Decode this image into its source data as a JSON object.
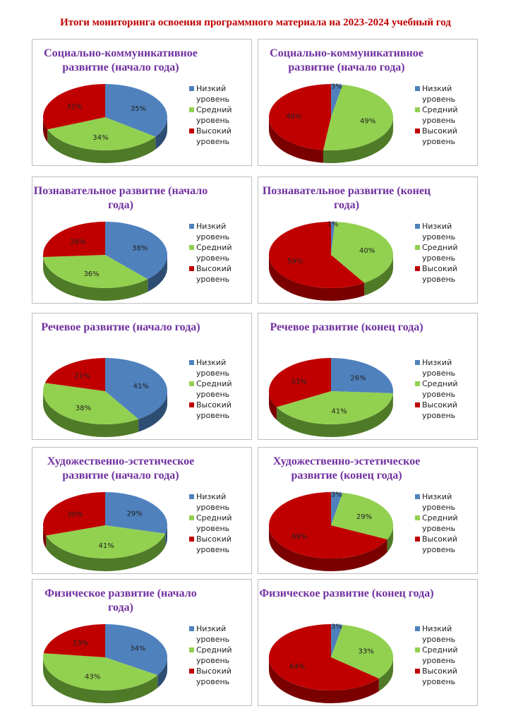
{
  "title": "Итоги мониторинга освоения программного материала на 2023-2024 учебный год",
  "legend": [
    "Низкий уровень",
    "Средний уровень",
    "Высокий уровень"
  ],
  "colors": [
    "#4f81bd",
    "#92d050",
    "#c00000"
  ],
  "chart_data": [
    {
      "type": "pie",
      "title": "Социально-коммуникативное развитие (начало года)",
      "categories": [
        "Низкий уровень",
        "Средний уровень",
        "Высокий уровень"
      ],
      "values": [
        35,
        34,
        31
      ],
      "labels": [
        "35%",
        "34%",
        "31%"
      ]
    },
    {
      "type": "pie",
      "title": "Социально-коммуникативное развитие (начало года)",
      "categories": [
        "Низкий уровень",
        "Средний уровень",
        "Высокий уровень"
      ],
      "values": [
        3,
        49,
        48
      ],
      "labels": [
        "3%",
        "49%",
        "48%"
      ]
    },
    {
      "type": "pie",
      "title": "Познавательное  развитие (начало года)",
      "categories": [
        "Низкий уровень",
        "Средний уровень",
        "Высокий уровень"
      ],
      "values": [
        38,
        36,
        26
      ],
      "labels": [
        "38%",
        "36%",
        "26%"
      ]
    },
    {
      "type": "pie",
      "title": "Познавательное  развитие (конец года)",
      "categories": [
        "Низкий уровень",
        "Средний уровень",
        "Высокий уровень"
      ],
      "values": [
        1,
        40,
        59
      ],
      "labels": [
        "1%",
        "40%",
        "59%"
      ]
    },
    {
      "type": "pie",
      "title": "Речевое  развитие (начало года)",
      "categories": [
        "Низкий уровень",
        "Средний уровень",
        "Высокий уровень"
      ],
      "values": [
        41,
        38,
        21
      ],
      "labels": [
        "41%",
        "38%",
        "21%"
      ]
    },
    {
      "type": "pie",
      "title": "Речевое  развитие (конец года)",
      "categories": [
        "Низкий уровень",
        "Средний уровень",
        "Высокий уровень"
      ],
      "values": [
        26,
        41,
        33
      ],
      "labels": [
        "26%",
        "41%",
        "33%"
      ]
    },
    {
      "type": "pie",
      "title": "Художественно-эстетическое развитие  (начало года)",
      "categories": [
        "Низкий уровень",
        "Средний уровень",
        "Высокий уровень"
      ],
      "values": [
        29,
        41,
        30
      ],
      "labels": [
        "29%",
        "41%",
        "30%"
      ]
    },
    {
      "type": "pie",
      "title": "Художественно-эстетическое развитие (конец года)",
      "categories": [
        "Низкий уровень",
        "Средний уровень",
        "Высокий уровень"
      ],
      "values": [
        3,
        29,
        68
      ],
      "labels": [
        "3%",
        "29%",
        "68%"
      ]
    },
    {
      "type": "pie",
      "title": "Физическое  развитие (начало года)",
      "categories": [
        "Низкий уровень",
        "Средний уровень",
        "Высокий уровень"
      ],
      "values": [
        34,
        43,
        23
      ],
      "labels": [
        "34%",
        "43%",
        "23%"
      ]
    },
    {
      "type": "pie",
      "title": "Физическое  развитие (конец года)",
      "categories": [
        "Низкий уровень",
        "Средний уровень",
        "Высокий уровень"
      ],
      "values": [
        3,
        33,
        64
      ],
      "labels": [
        "3%",
        "33%",
        "64%"
      ]
    }
  ]
}
